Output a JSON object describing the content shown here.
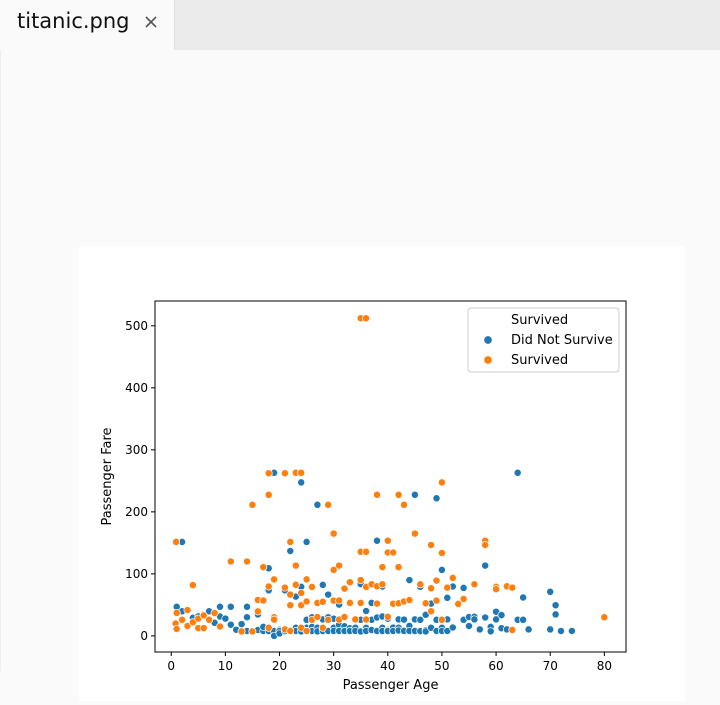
{
  "tab": {
    "title": "titanic.png",
    "close_icon": "close-icon"
  },
  "chart_data": {
    "type": "scatter",
    "title": "",
    "xlabel": "Passenger Age",
    "ylabel": "Passenger Fare",
    "xlim": [
      -3,
      84
    ],
    "ylim": [
      -26,
      540
    ],
    "xticks": [
      "0",
      "10",
      "20",
      "30",
      "40",
      "50",
      "60",
      "70",
      "80"
    ],
    "yticks": [
      "0",
      "100",
      "200",
      "300",
      "400",
      "500"
    ],
    "grid": false,
    "legend": {
      "title": "Survived",
      "placement": "top-right",
      "entries": [
        "Did Not Survive",
        "Survived"
      ]
    },
    "series": [
      {
        "name": "Did Not Survive",
        "color": "#1f77b4",
        "points": [
          [
            2,
            151.6
          ],
          [
            1,
            46.9
          ],
          [
            2,
            39.7
          ],
          [
            4,
            29.1
          ],
          [
            5,
            31.4
          ],
          [
            7,
            39.7
          ],
          [
            8,
            21.1
          ],
          [
            9,
            46.9
          ],
          [
            9,
            31.3
          ],
          [
            10,
            27.9
          ],
          [
            11,
            46.9
          ],
          [
            11,
            18
          ],
          [
            12,
            10
          ],
          [
            13,
            19
          ],
          [
            14,
            46.9
          ],
          [
            14,
            30.1
          ],
          [
            14,
            7.9
          ],
          [
            15,
            7.2
          ],
          [
            16,
            34.4
          ],
          [
            16,
            9.5
          ],
          [
            17,
            7.9
          ],
          [
            17,
            14.5
          ],
          [
            18,
            108.9
          ],
          [
            18,
            73.5
          ],
          [
            18,
            11.5
          ],
          [
            18,
            7.8
          ],
          [
            19,
            263
          ],
          [
            19,
            8.1
          ],
          [
            19,
            7.9
          ],
          [
            19,
            0
          ],
          [
            20,
            9.8
          ],
          [
            20,
            7.9
          ],
          [
            20,
            4
          ],
          [
            21,
            73.5
          ],
          [
            21,
            11.5
          ],
          [
            21,
            8.4
          ],
          [
            21,
            7.7
          ],
          [
            22,
            136.8
          ],
          [
            22,
            9.3
          ],
          [
            22,
            7.2
          ],
          [
            23,
            63.4
          ],
          [
            23,
            13
          ],
          [
            23,
            7.9
          ],
          [
            24,
            247.5
          ],
          [
            24,
            79.2
          ],
          [
            24,
            8.1
          ],
          [
            24,
            7.1
          ],
          [
            25,
            151.6
          ],
          [
            25,
            26
          ],
          [
            25,
            13
          ],
          [
            25,
            7.7
          ],
          [
            26,
            30
          ],
          [
            26,
            14.5
          ],
          [
            26,
            7.8
          ],
          [
            27,
            211.3
          ],
          [
            27,
            52
          ],
          [
            27,
            13
          ],
          [
            27,
            7.2
          ],
          [
            28,
            82.2
          ],
          [
            28,
            26.6
          ],
          [
            28,
            10.5
          ],
          [
            28,
            7.9
          ],
          [
            29,
            66.6
          ],
          [
            29,
            30
          ],
          [
            29,
            8.7
          ],
          [
            29,
            7.8
          ],
          [
            30,
            56.5
          ],
          [
            30,
            27.7
          ],
          [
            30,
            13
          ],
          [
            30,
            8.1
          ],
          [
            31,
            50.5
          ],
          [
            31,
            18
          ],
          [
            31,
            7.8
          ],
          [
            32,
            76.3
          ],
          [
            32,
            15.5
          ],
          [
            32,
            8.1
          ],
          [
            32,
            7.9
          ],
          [
            33,
            53.1
          ],
          [
            33,
            12.3
          ],
          [
            33,
            7.9
          ],
          [
            34,
            26
          ],
          [
            34,
            13
          ],
          [
            34,
            8.1
          ],
          [
            35,
            83.5
          ],
          [
            35,
            26
          ],
          [
            35,
            7.1
          ],
          [
            36,
            40.1
          ],
          [
            36,
            12.9
          ],
          [
            36,
            7.9
          ],
          [
            37,
            53.1
          ],
          [
            37,
            26
          ],
          [
            37,
            9.5
          ],
          [
            38,
            153.5
          ],
          [
            38,
            29.7
          ],
          [
            38,
            7.9
          ],
          [
            39,
            79.7
          ],
          [
            39,
            31.3
          ],
          [
            39,
            13
          ],
          [
            39,
            7.9
          ],
          [
            40,
            27.7
          ],
          [
            40,
            9.5
          ],
          [
            40,
            7.8
          ],
          [
            41,
            52
          ],
          [
            41,
            13.3
          ],
          [
            41,
            7.9
          ],
          [
            42,
            26.6
          ],
          [
            42,
            13
          ],
          [
            42,
            8.7
          ],
          [
            43,
            26.3
          ],
          [
            43,
            8.1
          ],
          [
            44,
            90
          ],
          [
            44,
            16.1
          ],
          [
            44,
            8.1
          ],
          [
            45,
            227.5
          ],
          [
            45,
            26.6
          ],
          [
            45,
            7.8
          ],
          [
            46,
            79.2
          ],
          [
            46,
            26
          ],
          [
            46,
            7.7
          ],
          [
            47,
            34
          ],
          [
            47,
            9
          ],
          [
            47,
            7.2
          ],
          [
            48,
            52
          ],
          [
            48,
            13
          ],
          [
            49,
            221.8
          ],
          [
            49,
            26
          ],
          [
            49,
            7.9
          ],
          [
            50,
            106.4
          ],
          [
            50,
            13
          ],
          [
            50,
            8.1
          ],
          [
            51,
            61.4
          ],
          [
            51,
            26.6
          ],
          [
            51,
            7.8
          ],
          [
            52,
            79.7
          ],
          [
            52,
            13.5
          ],
          [
            54,
            77.3
          ],
          [
            54,
            26
          ],
          [
            55,
            30.5
          ],
          [
            55,
            16
          ],
          [
            56,
            30.7
          ],
          [
            56,
            26.6
          ],
          [
            57,
            10.5
          ],
          [
            58,
            113.3
          ],
          [
            58,
            29.7
          ],
          [
            59,
            14.5
          ],
          [
            59,
            7.3
          ],
          [
            60,
            39
          ],
          [
            60,
            26.6
          ],
          [
            61,
            33.5
          ],
          [
            61,
            12.3
          ],
          [
            62,
            10.5
          ],
          [
            63,
            77.9
          ],
          [
            64,
            263
          ],
          [
            64,
            26
          ],
          [
            65,
            61.9
          ],
          [
            65,
            26
          ],
          [
            66,
            10.5
          ],
          [
            70,
            71
          ],
          [
            70,
            10.5
          ],
          [
            71,
            49.5
          ],
          [
            71,
            34.7
          ],
          [
            72,
            7.8
          ],
          [
            74,
            7.8
          ]
        ]
      },
      {
        "name": "Survived",
        "color": "#ff7f0e",
        "points": [
          [
            0.9,
            151.6
          ],
          [
            0.8,
            20
          ],
          [
            1,
            11.1
          ],
          [
            1,
            37
          ],
          [
            2,
            26
          ],
          [
            3,
            41.6
          ],
          [
            3,
            15.9
          ],
          [
            4,
            81.9
          ],
          [
            4,
            22
          ],
          [
            5,
            12.5
          ],
          [
            5,
            27.8
          ],
          [
            6,
            12.5
          ],
          [
            6,
            33
          ],
          [
            7,
            26
          ],
          [
            8,
            36.8
          ],
          [
            9,
            15.2
          ],
          [
            11,
            120
          ],
          [
            13,
            7.2
          ],
          [
            14,
            120
          ],
          [
            15,
            211.3
          ],
          [
            15,
            7.2
          ],
          [
            16,
            57.9
          ],
          [
            16,
            39.4
          ],
          [
            17,
            110.9
          ],
          [
            17,
            57
          ],
          [
            18,
            262.4
          ],
          [
            18,
            227.5
          ],
          [
            18,
            79.7
          ],
          [
            18,
            13
          ],
          [
            19,
            91.1
          ],
          [
            19,
            30
          ],
          [
            19,
            26.3
          ],
          [
            21,
            262.4
          ],
          [
            21,
            77.9
          ],
          [
            21,
            10.5
          ],
          [
            22,
            151.6
          ],
          [
            22,
            66.6
          ],
          [
            22,
            49.5
          ],
          [
            22,
            7.8
          ],
          [
            23,
            263
          ],
          [
            23,
            113.3
          ],
          [
            23,
            82.3
          ],
          [
            24,
            263
          ],
          [
            24,
            69.3
          ],
          [
            24,
            49.5
          ],
          [
            24,
            13
          ],
          [
            25,
            91.1
          ],
          [
            25,
            55.4
          ],
          [
            25,
            7.9
          ],
          [
            26,
            78.9
          ],
          [
            26,
            25.9
          ],
          [
            27,
            53.1
          ],
          [
            27,
            30.5
          ],
          [
            28,
            55
          ],
          [
            28,
            13
          ],
          [
            29,
            211.3
          ],
          [
            29,
            26
          ],
          [
            30,
            164.9
          ],
          [
            30,
            106.4
          ],
          [
            30,
            56.9
          ],
          [
            31,
            113.3
          ],
          [
            31,
            57
          ],
          [
            31,
            26.3
          ],
          [
            32,
            76.3
          ],
          [
            32,
            30.5
          ],
          [
            33,
            86.5
          ],
          [
            33,
            53.1
          ],
          [
            34,
            26.6
          ],
          [
            35,
            512.3
          ],
          [
            35,
            135.6
          ],
          [
            35,
            90
          ],
          [
            35,
            53.1
          ],
          [
            36,
            512.3
          ],
          [
            36,
            135.6
          ],
          [
            36,
            78.9
          ],
          [
            36,
            26.4
          ],
          [
            37,
            83.2
          ],
          [
            38,
            227.5
          ],
          [
            38,
            80
          ],
          [
            38,
            52
          ],
          [
            39,
            110.9
          ],
          [
            39,
            83.2
          ],
          [
            40,
            153.5
          ],
          [
            40,
            134.5
          ],
          [
            40,
            31
          ],
          [
            41,
            134.5
          ],
          [
            41,
            51.9
          ],
          [
            42,
            227.5
          ],
          [
            42,
            110.9
          ],
          [
            42,
            52.6
          ],
          [
            43,
            211.3
          ],
          [
            43,
            55.4
          ],
          [
            44,
            57.9
          ],
          [
            45,
            164.9
          ],
          [
            46,
            83.2
          ],
          [
            47,
            52.6
          ],
          [
            48,
            146.5
          ],
          [
            48,
            76.7
          ],
          [
            48,
            39.6
          ],
          [
            49,
            89.1
          ],
          [
            49,
            56.9
          ],
          [
            50,
            247.5
          ],
          [
            50,
            133.7
          ],
          [
            50,
            26
          ],
          [
            51,
            77.9
          ],
          [
            52,
            93.5
          ],
          [
            53,
            51.5
          ],
          [
            54,
            59.4
          ],
          [
            56,
            83.2
          ],
          [
            58,
            153.5
          ],
          [
            58,
            146.5
          ],
          [
            60,
            79.2
          ],
          [
            60,
            75.2
          ],
          [
            62,
            80
          ],
          [
            63,
            77.9
          ],
          [
            63,
            9.6
          ],
          [
            80,
            30
          ]
        ]
      }
    ]
  }
}
